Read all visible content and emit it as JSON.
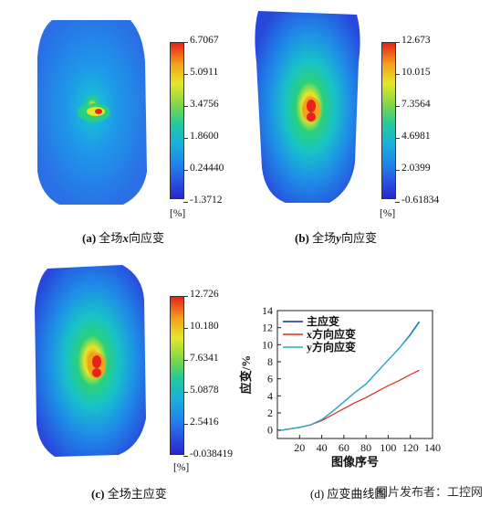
{
  "panels": [
    {
      "id": "a",
      "caption_label": "(a)",
      "caption_pre": "全场",
      "caption_var": "x",
      "caption_post": "向应变",
      "colorbar_ticks": [
        "6.7067",
        "5.0911",
        "3.4756",
        "1.8600",
        "0.24440",
        "-1.3712"
      ],
      "unit": "[%]"
    },
    {
      "id": "b",
      "caption_label": "(b)",
      "caption_pre": "全场",
      "caption_var": "y",
      "caption_post": "向应变",
      "colorbar_ticks": [
        "12.673",
        "10.015",
        "7.3564",
        "4.6981",
        "2.0399",
        "-0.61834"
      ],
      "unit": "[%]"
    },
    {
      "id": "c",
      "caption_label": "(c)",
      "caption_pre": "全场主应变",
      "caption_var": "",
      "caption_post": "",
      "colorbar_ticks": [
        "12.726",
        "10.180",
        "7.6341",
        "5.0878",
        "2.5416",
        "-0.038419"
      ],
      "unit": "[%]"
    }
  ],
  "chart_caption": "(d) 应变曲线图",
  "watermark": "图片发布者：工控网",
  "chart_data": {
    "type": "line",
    "xlabel": "图像序号",
    "ylabel": "应变/%",
    "xlim": [
      0,
      140
    ],
    "ylim": [
      -1,
      14
    ],
    "xticks": [
      20,
      40,
      60,
      80,
      100,
      120,
      140
    ],
    "yticks": [
      0,
      2,
      4,
      6,
      8,
      10,
      12,
      14
    ],
    "legend_position": "top-left",
    "series": [
      {
        "name": "主应变",
        "color": "#1a2a8c",
        "x": [
          0,
          10,
          20,
          30,
          40,
          50,
          60,
          70,
          80,
          90,
          100,
          110,
          120,
          128
        ],
        "values": [
          -0.1,
          0.1,
          0.3,
          0.6,
          1.2,
          2.2,
          3.3,
          4.4,
          5.4,
          6.8,
          8.2,
          9.6,
          11.2,
          12.7
        ]
      },
      {
        "name": "x方向应变",
        "color": "#e02a1a",
        "x": [
          0,
          10,
          20,
          30,
          40,
          50,
          60,
          70,
          80,
          90,
          100,
          110,
          120,
          128
        ],
        "values": [
          -0.1,
          0.1,
          0.3,
          0.6,
          1.1,
          1.8,
          2.5,
          3.2,
          3.8,
          4.5,
          5.2,
          5.8,
          6.5,
          7.0
        ]
      },
      {
        "name": "y方向应变",
        "color": "#22b0c8",
        "x": [
          0,
          10,
          20,
          30,
          40,
          50,
          60,
          70,
          80,
          90,
          100,
          110,
          120,
          128
        ],
        "values": [
          -0.1,
          0.1,
          0.3,
          0.6,
          1.2,
          2.2,
          3.3,
          4.4,
          5.4,
          6.8,
          8.2,
          9.6,
          11.1,
          12.6
        ]
      }
    ]
  }
}
